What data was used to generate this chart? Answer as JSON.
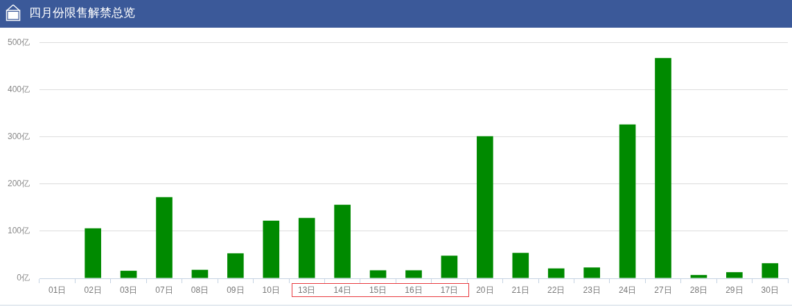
{
  "chart_data": {
    "type": "bar",
    "title": "四月份限售解禁总览",
    "categories": [
      "01日",
      "02日",
      "03日",
      "07日",
      "08日",
      "09日",
      "10日",
      "13日",
      "14日",
      "15日",
      "16日",
      "17日",
      "20日",
      "21日",
      "22日",
      "23日",
      "24日",
      "27日",
      "28日",
      "29日",
      "30日"
    ],
    "values": [
      0,
      106,
      16,
      172,
      18,
      53,
      122,
      128,
      156,
      17,
      17,
      48,
      301,
      54,
      21,
      23,
      326,
      467,
      7,
      13,
      32
    ],
    "color": "#008a00",
    "ylim": [
      0,
      500
    ],
    "yticks": [
      {
        "value": 0,
        "label": "0亿"
      },
      {
        "value": 100,
        "label": "100亿"
      },
      {
        "value": 200,
        "label": "200亿"
      },
      {
        "value": 300,
        "label": "300亿"
      },
      {
        "value": 400,
        "label": "400亿"
      },
      {
        "value": 500,
        "label": "500亿"
      }
    ],
    "grid": "y"
  }
}
